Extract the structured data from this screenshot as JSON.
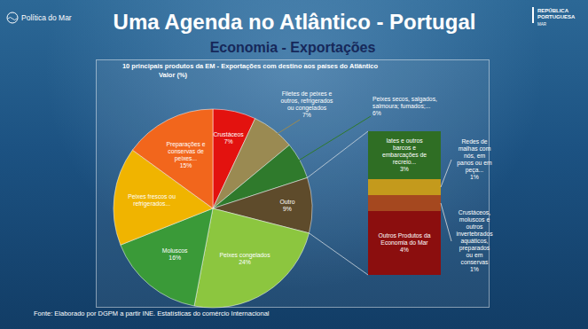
{
  "header": {
    "title": "Uma Agenda no Atlântico - Portugal",
    "subtitle": "Economia - Exportações",
    "logo_left": "Política do Mar",
    "logo_right": "REPÚBLICA PORTUGUESA",
    "logo_right_sub": "MAR"
  },
  "chart_data": [
    {
      "type": "pie",
      "title": "10 principais produtos da EM - Exportações com destino aos países do Atlântico",
      "subtitle": "Valor (%)",
      "categories": [
        "Crustáceos",
        "Filetes de peixes e outros, refrigerados ou congelados",
        "Peixes secos, salgados, salmoura; fumados;...",
        "Outro",
        "Peixes congelados",
        "Moluscos",
        "Peixes frescos ou refrigerados...",
        "Preparações e conservas de peixes..."
      ],
      "values": [
        7,
        7,
        6,
        9,
        24,
        16,
        16,
        15
      ],
      "value_labels": [
        "7%",
        "7%",
        "6%",
        "9%",
        "24%",
        "16%",
        null,
        "15%"
      ],
      "colors": [
        "#e3120f",
        "#9a8a52",
        "#2f7a2c",
        "#5e4b2b",
        "#8cc63f",
        "#3a9a38",
        "#f0b400",
        "#f2661c"
      ],
      "data_labels": true
    },
    {
      "type": "bar",
      "stacked": true,
      "categories": [
        "Iates e outros barcos e embarcações de recreio...",
        "Redes de malhas com nós, em panos ou em peça...",
        "Crustáceos, moluscos e outros invertebrados aquáticos, preparados ou em conservas",
        "Outros Produtos da Economia do Mar"
      ],
      "values": [
        3,
        1,
        1,
        4
      ],
      "value_labels": [
        "3%",
        "1%",
        "1%",
        "4%"
      ],
      "colors": [
        "#2f6e24",
        "#c49a1c",
        "#a5481f",
        "#8b0e0e"
      ],
      "data_labels": true,
      "tick_labels": false
    }
  ],
  "source": "Fonte: Elaborado por DGPM a partir INE. Estatísticas do comércio Internacional"
}
